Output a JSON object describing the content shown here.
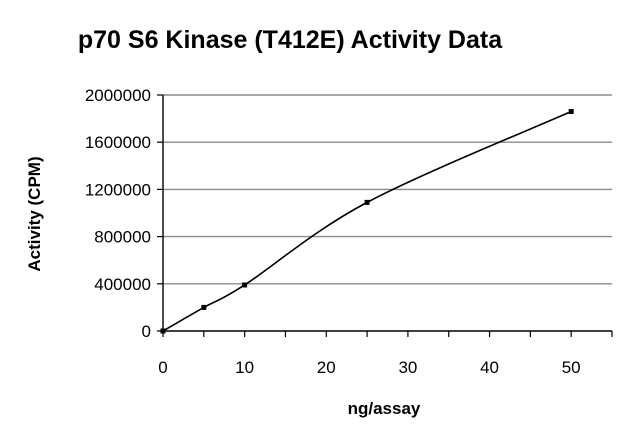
{
  "chart_data": {
    "type": "line",
    "title": "p70 S6 Kinase (T412E) Activity Data",
    "xlabel": "ng/assay",
    "ylabel": "Activity (CPM)",
    "xlim": [
      0,
      55
    ],
    "ylim": [
      0,
      2000000
    ],
    "xticks": [
      "0",
      "10",
      "20",
      "30",
      "40",
      "50"
    ],
    "yticks": [
      "0",
      "400000",
      "800000",
      "1200000",
      "1600000",
      "2000000"
    ],
    "grid": "horizontal",
    "legend": "none",
    "series": [
      {
        "x": [
          0,
          5,
          10,
          25,
          50
        ],
        "values": [
          0,
          200000,
          390000,
          1090000,
          1860000
        ],
        "color": "#000000"
      }
    ]
  }
}
